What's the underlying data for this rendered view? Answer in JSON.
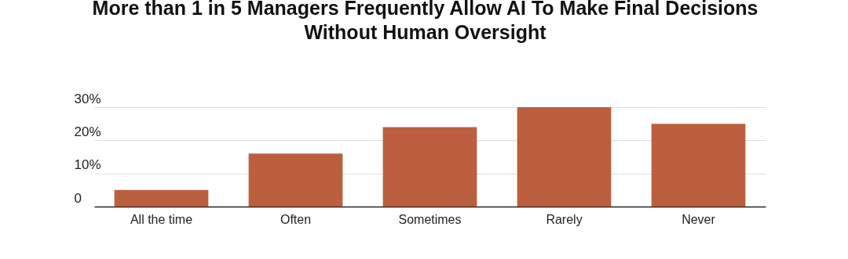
{
  "chart_data": {
    "type": "bar",
    "title": "More than 1 in 5 Managers Frequently Allow AI To Make Final Decisions Without Human Oversight",
    "categories": [
      "All the time",
      "Often",
      "Sometimes",
      "Rarely",
      "Never"
    ],
    "values": [
      5,
      16,
      24,
      30,
      25
    ],
    "color": "#bb5f3f",
    "ylim": [
      0,
      30
    ],
    "yticks": [
      0,
      {
        "value": 10,
        "label": "10%"
      },
      {
        "value": 20,
        "label": "20%"
      },
      {
        "value": 30,
        "label": "30%"
      }
    ],
    "grid": "y"
  }
}
